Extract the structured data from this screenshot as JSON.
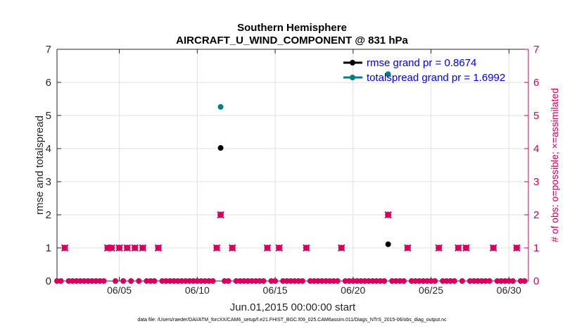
{
  "chart_data": {
    "type": "scatter",
    "title": "Southern Hemisphere",
    "subtitle": "AIRCRAFT_U_WIND_COMPONENT @ 831 hPa",
    "xlabel": "Jun.01,2015 00:00:00 start",
    "ylabel_left": "rmse and totalspread",
    "ylabel_right": "# of obs: o=possible; ×=assimilated",
    "x_tick_labels": [
      "06/05",
      "06/10",
      "06/15",
      "06/20",
      "06/25",
      "06/30"
    ],
    "x_tick_days": [
      5,
      10,
      15,
      20,
      25,
      30
    ],
    "y_tick_labels": [
      "0",
      "1",
      "2",
      "3",
      "4",
      "5",
      "6",
      "7"
    ],
    "xlim_days": [
      1.0,
      31.25
    ],
    "ylim": [
      0,
      7
    ],
    "grid": true,
    "legend_position": "top-right",
    "series": [
      {
        "name": "rmse grand pr = 0.8674",
        "color": "#000000",
        "axis": "left",
        "x_days": [
          11.5,
          22.25
        ],
        "y": [
          4.02,
          1.11
        ]
      },
      {
        "name": "totalspread grand pr = 1.6992",
        "color": "#008080",
        "axis": "left",
        "x_days": [
          11.5,
          22.25
        ],
        "y": [
          5.26,
          6.25
        ]
      },
      {
        "name": "obs possible",
        "color": "#d6005c",
        "axis": "right",
        "marker": "circle",
        "x_days": [
          1.5,
          4.25,
          4.5,
          5.0,
          5.5,
          6.0,
          6.5,
          7.5,
          11.25,
          11.5,
          12.25,
          14.5,
          15.25,
          17.0,
          19.25,
          22.25,
          23.5,
          25.5,
          26.75,
          27.25,
          29.0,
          30.5
        ],
        "y": [
          1,
          1,
          1,
          1,
          1,
          1,
          1,
          1,
          1,
          2,
          1,
          1,
          1,
          1,
          1,
          2,
          1,
          1,
          1,
          1,
          1,
          1
        ]
      },
      {
        "name": "obs assimilated",
        "color": "#d6005c",
        "axis": "right",
        "marker": "x",
        "x_days": [
          1.5,
          4.25,
          4.5,
          5.0,
          5.5,
          6.0,
          6.5,
          7.5,
          11.25,
          11.5,
          12.25,
          14.5,
          15.25,
          17.0,
          19.25,
          22.25,
          23.5,
          25.5,
          26.75,
          27.25,
          29.0,
          30.5
        ],
        "y": [
          1,
          1,
          1,
          1,
          1,
          1,
          1,
          1,
          1,
          2,
          1,
          1,
          1,
          1,
          1,
          2,
          1,
          1,
          1,
          1,
          1,
          1
        ]
      }
    ]
  },
  "footer": "data file: /Users/raeder/DAI/ATM_forcXX/CAM6_setup/f.e21.FHIST_BGC.f09_025.CAM6assim.011/Diags_NTrS_2015-06/obs_diag_output.nc"
}
